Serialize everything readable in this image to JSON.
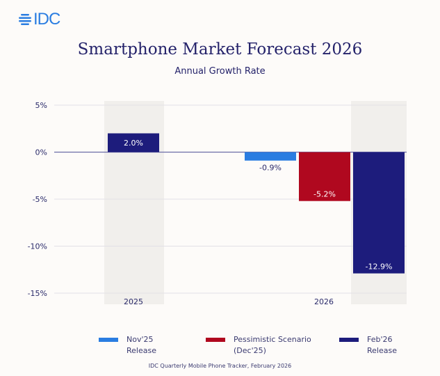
{
  "logo": {
    "text": "IDC"
  },
  "chart_data": {
    "type": "bar",
    "title": "Smartphone Market Forecast 2026",
    "subtitle": "Annual Growth Rate",
    "categories": [
      "2025",
      "2026"
    ],
    "ylim": [
      -15,
      5
    ],
    "yticks": [
      5,
      0,
      -5,
      -10,
      -15
    ],
    "ytick_labels": [
      "5%",
      "0%",
      "-5%",
      "-10%",
      "-15%"
    ],
    "grid": true,
    "legend_placement": "bottom",
    "series": [
      {
        "name": "Nov'25 Release",
        "color": "#2a7de1",
        "values": [
          null,
          -0.9
        ],
        "labels": [
          null,
          "-0.9%"
        ]
      },
      {
        "name": "Pessimistic Scenario (Dec'25)",
        "color": "#b0081f",
        "values": [
          null,
          -5.2
        ],
        "labels": [
          null,
          "-5.2%"
        ]
      },
      {
        "name": "Feb'26 Release",
        "color": "#1d1c7c",
        "values": [
          2.0,
          -12.9
        ],
        "labels": [
          "2.0%",
          "-12.9%"
        ]
      }
    ],
    "legend": [
      {
        "line1": "Nov'25",
        "line2": "Release"
      },
      {
        "line1": "Pessimistic Scenario",
        "line2": "(Dec'25)"
      },
      {
        "line1": "Feb'26",
        "line2": "Release"
      }
    ]
  },
  "source": "IDC Quarterly Mobile Phone Tracker, February 2026"
}
